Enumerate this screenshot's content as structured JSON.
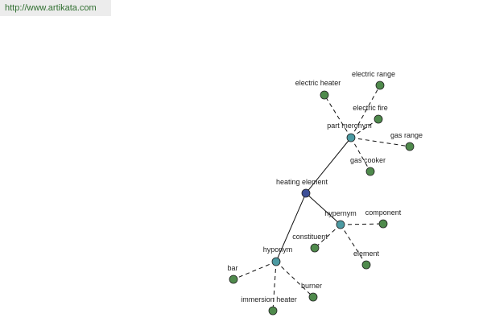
{
  "header": {
    "url": "http://www.artikata.com"
  },
  "nodes": [
    {
      "label": "heating element"
    },
    {
      "label": "part meronym"
    },
    {
      "label": "hypernym"
    },
    {
      "label": "hyponym"
    },
    {
      "label": "electric heater"
    },
    {
      "label": "electric range"
    },
    {
      "label": "electric fire"
    },
    {
      "label": "gas range"
    },
    {
      "label": "gas cooker"
    },
    {
      "label": "component"
    },
    {
      "label": "constituent"
    },
    {
      "label": "element"
    },
    {
      "label": "bar"
    },
    {
      "label": "immersion heater"
    },
    {
      "label": "burner"
    }
  ]
}
